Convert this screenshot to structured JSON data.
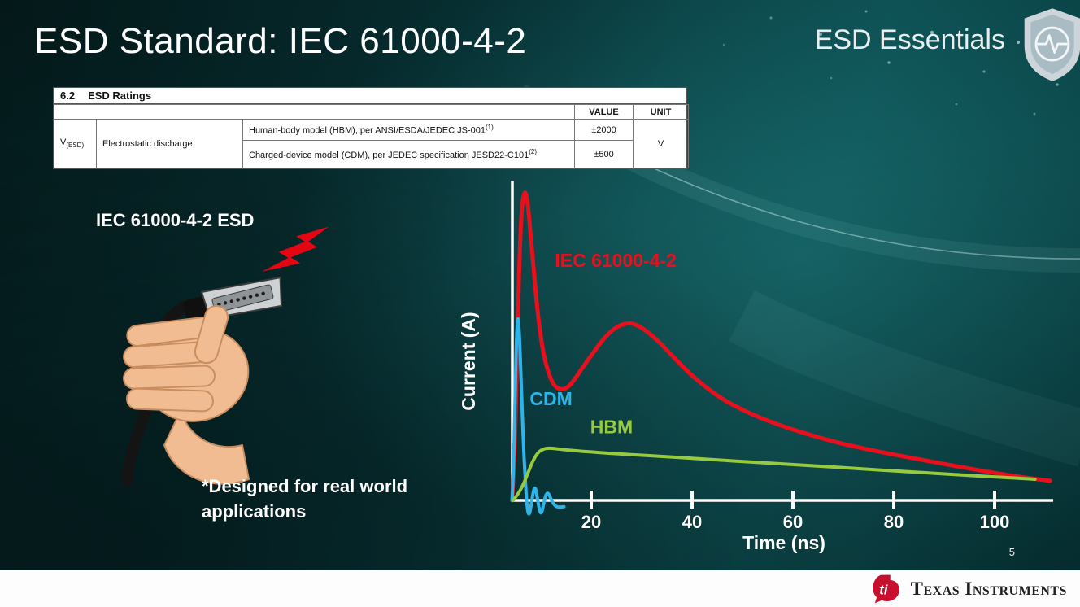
{
  "slide": {
    "title": "ESD Standard: IEC 61000-4-2",
    "brand": "ESD Essentials",
    "page_number": "5",
    "footer": {
      "logo_monogram": "ti",
      "logo_text": "Texas Instruments"
    }
  },
  "ratings_table": {
    "section_number": "6.2",
    "section_title": "ESD Ratings",
    "value_header": "VALUE",
    "unit_header": "UNIT",
    "param_symbol": "V",
    "param_symbol_sub": "(ESD)",
    "param_name": "Electrostatic discharge",
    "rows": [
      {
        "condition": "Human-body model (HBM), per ANSI/ESDA/JEDEC JS-001",
        "sup": "(1)",
        "value": "±2000"
      },
      {
        "condition": "Charged-device model (CDM), per JEDEC specification JESD22-C101",
        "sup": "(2)",
        "value": "±500"
      }
    ],
    "unit": "V"
  },
  "left_panel": {
    "esd_label": "IEC 61000-4-2 ESD",
    "footnote": "*Designed for real world\napplications"
  },
  "chart_data": {
    "type": "line",
    "title": "",
    "xlabel": "Time (ns)",
    "ylabel": "Current (A)",
    "xlim": [
      0,
      112
    ],
    "ylim": [
      -0.08,
      1.05
    ],
    "x_ticks": [
      20,
      40,
      60,
      80,
      100
    ],
    "grid": false,
    "legend_position": "inline-labels",
    "series": [
      {
        "name": "IEC 61000-4-2",
        "color": "#e8101c",
        "width": 5,
        "points": [
          [
            4.3,
            0
          ],
          [
            4.8,
            0.14
          ],
          [
            5.2,
            0.4
          ],
          [
            5.7,
            0.75
          ],
          [
            6.2,
            0.94
          ],
          [
            6.8,
            1.0
          ],
          [
            7.4,
            0.96
          ],
          [
            8.0,
            0.85
          ],
          [
            8.8,
            0.7
          ],
          [
            9.6,
            0.57
          ],
          [
            10.5,
            0.47
          ],
          [
            11.5,
            0.41
          ],
          [
            12.5,
            0.37
          ],
          [
            13.8,
            0.355
          ],
          [
            15.2,
            0.36
          ],
          [
            16.6,
            0.385
          ],
          [
            18,
            0.42
          ],
          [
            20,
            0.465
          ],
          [
            22,
            0.51
          ],
          [
            24,
            0.545
          ],
          [
            26,
            0.565
          ],
          [
            28,
            0.57
          ],
          [
            30,
            0.555
          ],
          [
            32,
            0.53
          ],
          [
            34,
            0.5
          ],
          [
            36,
            0.465
          ],
          [
            38,
            0.432
          ],
          [
            40,
            0.4
          ],
          [
            43,
            0.36
          ],
          [
            46,
            0.325
          ],
          [
            50,
            0.29
          ],
          [
            54,
            0.262
          ],
          [
            58,
            0.238
          ],
          [
            62,
            0.217
          ],
          [
            66,
            0.198
          ],
          [
            70,
            0.181
          ],
          [
            75,
            0.163
          ],
          [
            80,
            0.147
          ],
          [
            85,
            0.132
          ],
          [
            90,
            0.117
          ],
          [
            95,
            0.102
          ],
          [
            100,
            0.088
          ],
          [
            104,
            0.078
          ],
          [
            108,
            0.069
          ],
          [
            111,
            0.063
          ]
        ]
      },
      {
        "name": "CDM",
        "color": "#2fb4e9",
        "width": 4,
        "points": [
          [
            4.3,
            0
          ],
          [
            4.6,
            0.1
          ],
          [
            4.9,
            0.33
          ],
          [
            5.2,
            0.54
          ],
          [
            5.5,
            0.6
          ],
          [
            5.8,
            0.52
          ],
          [
            6.1,
            0.38
          ],
          [
            6.5,
            0.2
          ],
          [
            6.9,
            0.07
          ],
          [
            7.3,
            -0.03
          ],
          [
            7.7,
            -0.05
          ],
          [
            8.1,
            -0.015
          ],
          [
            8.5,
            0.03
          ],
          [
            8.9,
            0.045
          ],
          [
            9.3,
            0.01
          ],
          [
            9.7,
            -0.03
          ],
          [
            10.1,
            -0.045
          ],
          [
            10.5,
            -0.015
          ],
          [
            11,
            0.02
          ],
          [
            11.5,
            0.025
          ],
          [
            12.1,
            0
          ],
          [
            12.9,
            -0.02
          ],
          [
            13.8,
            -0.022
          ],
          [
            14.6,
            -0.02
          ]
        ]
      },
      {
        "name": "HBM",
        "color": "#97ca3e",
        "width": 4,
        "points": [
          [
            4.5,
            0
          ],
          [
            5.5,
            0.02
          ],
          [
            6.5,
            0.05
          ],
          [
            7.5,
            0.09
          ],
          [
            8.5,
            0.13
          ],
          [
            9.5,
            0.155
          ],
          [
            10.5,
            0.165
          ],
          [
            11.5,
            0.168
          ],
          [
            13,
            0.166
          ],
          [
            15,
            0.162
          ],
          [
            18,
            0.158
          ],
          [
            22,
            0.153
          ],
          [
            26,
            0.149
          ],
          [
            30,
            0.145
          ],
          [
            35,
            0.14
          ],
          [
            40,
            0.135
          ],
          [
            45,
            0.13
          ],
          [
            50,
            0.125
          ],
          [
            55,
            0.12
          ],
          [
            60,
            0.115
          ],
          [
            65,
            0.11
          ],
          [
            70,
            0.105
          ],
          [
            75,
            0.1
          ],
          [
            80,
            0.095
          ],
          [
            85,
            0.09
          ],
          [
            90,
            0.085
          ],
          [
            95,
            0.08
          ],
          [
            100,
            0.075
          ],
          [
            105,
            0.071
          ],
          [
            108,
            0.068
          ]
        ]
      }
    ],
    "labels": [
      {
        "text": "IEC 61000-4-2",
        "color": "#e8101c",
        "x": 12.8,
        "y": 0.75
      },
      {
        "text": "CDM",
        "color": "#2fb4e9",
        "x": 7.8,
        "y": 0.305
      },
      {
        "text": "HBM",
        "color": "#97ca3e",
        "x": 19.8,
        "y": 0.215
      }
    ]
  }
}
